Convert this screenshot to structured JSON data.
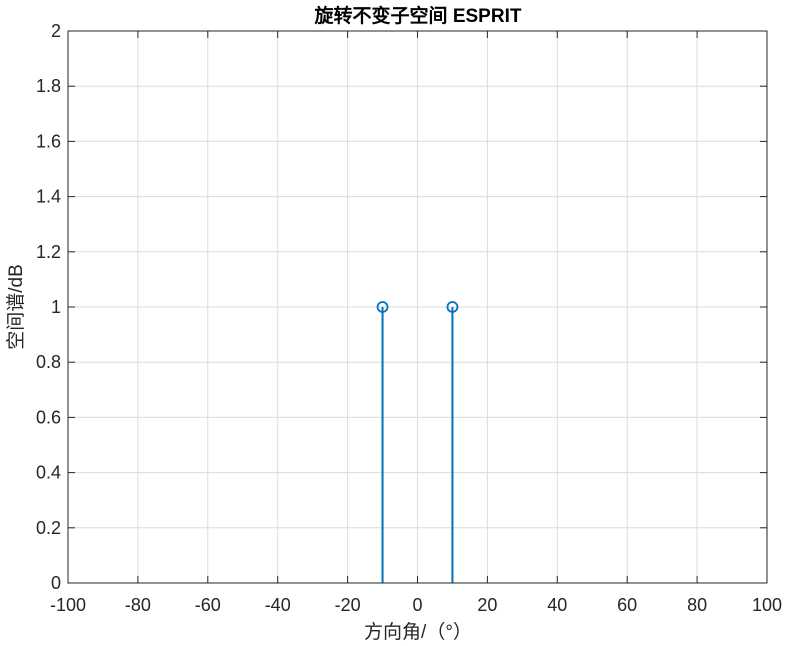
{
  "chart_data": {
    "type": "stem",
    "title": "旋转不变子空间 ESPRIT",
    "xlabel": "方向角/（°）",
    "ylabel": "空间谱/dB",
    "xlim": [
      -100,
      100
    ],
    "ylim": [
      0,
      2
    ],
    "x_ticks": [
      -100,
      -80,
      -60,
      -40,
      -20,
      0,
      20,
      40,
      60,
      80,
      100
    ],
    "y_ticks": [
      0,
      0.2,
      0.4,
      0.6,
      0.8,
      1,
      1.2,
      1.4,
      1.6,
      1.8,
      2
    ],
    "grid": true,
    "marker": "circle",
    "series": [
      {
        "x": [
          -10,
          10
        ],
        "y": [
          1,
          1
        ],
        "color": "#0072BD"
      }
    ]
  }
}
